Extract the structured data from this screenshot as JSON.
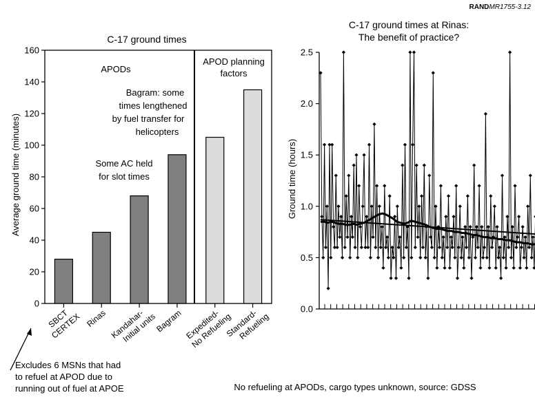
{
  "source_tag": {
    "org": "RAND",
    "id": "MR1755-3.12"
  },
  "footnote_left": [
    "Excludes 6 MSNs that had",
    "to refuel at APOD due to",
    "running out of fuel at APOE"
  ],
  "footnote_right": "No refueling at APODs, cargo types unknown, source: GDSS",
  "chart_data": [
    {
      "type": "bar",
      "title": "C-17 ground times",
      "ylabel": "Average ground time (minutes)",
      "xlabel": "",
      "ylim": [
        0,
        160
      ],
      "yticks": [
        "0",
        "20",
        "40",
        "60",
        "80",
        "100",
        "120",
        "140",
        "160"
      ],
      "grid": false,
      "categories": [
        [
          "SBCT",
          "CERTEX"
        ],
        [
          "Rinas"
        ],
        [
          "Kandahar-",
          "Initial units"
        ],
        [
          "Bagram"
        ],
        [
          "Expedited-",
          "No Refueling"
        ],
        [
          "Standard-",
          "Refueling"
        ]
      ],
      "values": [
        28,
        45,
        68,
        94,
        105,
        135
      ],
      "bar_colors": [
        "#808080",
        "#808080",
        "#808080",
        "#808080",
        "#dcdcdc",
        "#dcdcdc"
      ],
      "section_labels": [
        {
          "lines": [
            "APODs"
          ]
        },
        {
          "lines": [
            "APOD planning",
            "factors"
          ]
        }
      ],
      "annotations": [
        {
          "lines": [
            "Bagram: some",
            "times lengthened",
            "by fuel transfer for",
            "helicopters"
          ]
        },
        {
          "lines": [
            "Some AC held",
            "for slot times"
          ]
        }
      ]
    },
    {
      "type": "line",
      "title": [
        "C-17 ground times at Rinas:",
        "The benefit of practice?"
      ],
      "ylabel": "Ground time (hours)",
      "xlabel": "",
      "ylim": [
        0,
        2.5
      ],
      "yticks": [
        "0.0",
        "0.5",
        "1.0",
        "1.5",
        "2.0",
        "2.5"
      ],
      "grid": false,
      "series": [
        {
          "values": [
            2.3,
            0.9,
            0.5,
            1.6,
            0.6,
            1.0,
            0.2,
            1.6,
            0.5,
            1.6,
            0.8,
            0.6,
            1.3,
            0.6,
            1.0,
            0.7,
            0.9,
            0.5,
            2.5,
            0.6,
            1.1,
            0.7,
            1.3,
            0.5,
            0.9,
            0.7,
            1.4,
            0.6,
            1.5,
            0.5,
            1.2,
            0.8,
            0.6,
            1.0,
            1.5,
            0.6,
            0.9,
            0.6,
            1.6,
            0.5,
            1.0,
            0.7,
            1.8,
            0.6,
            1.2,
            0.5,
            1.0,
            0.6,
            0.8,
            0.4,
            1.2,
            0.6,
            0.7,
            0.5,
            1.1,
            0.3,
            0.6,
            0.5,
            0.9,
            0.3,
            1.0,
            0.6,
            0.7,
            0.4,
            1.4,
            0.5,
            1.6,
            0.6,
            0.8,
            0.3,
            2.5,
            0.5,
            1.6,
            2.5,
            0.6,
            1.4,
            0.7,
            1.0,
            0.5,
            1.1,
            0.6,
            1.4,
            0.5,
            0.8,
            0.3,
            1.3,
            0.7,
            0.6,
            2.3,
            0.5,
            1.0,
            0.4,
            0.8,
            0.6,
            1.2,
            0.5,
            0.7,
            0.4,
            0.9,
            0.6,
            1.1,
            0.4,
            0.7,
            0.6,
            0.9,
            0.5,
            1.2,
            0.3,
            0.6,
            1.0,
            0.5,
            0.7,
            0.4,
            0.8,
            0.6,
            1.1,
            0.5,
            0.8,
            0.3,
            0.7,
            1.4,
            0.5,
            0.8,
            0.6,
            1.2,
            0.4,
            0.8,
            0.5,
            0.6,
            1.9,
            0.5,
            0.8,
            0.4,
            1.1,
            0.6,
            0.7,
            1.0,
            0.4,
            0.8,
            0.5,
            0.6,
            0.3,
            1.3,
            0.5,
            0.7,
            0.4,
            0.9,
            0.6,
            2.5,
            0.5,
            0.8,
            0.4,
            1.2,
            0.6,
            0.7,
            0.9,
            0.4,
            0.6,
            0.8,
            0.5,
            0.7,
            0.4,
            1.0,
            0.6,
            1.3,
            0.5,
            0.7,
            0.4,
            0.9,
            0.6,
            0.5,
            1.4,
            0.5,
            0.6
          ]
        },
        {
          "values": [
            0.85,
            0.85,
            0.84,
            0.85,
            0.84,
            0.83,
            0.83,
            0.82,
            0.82,
            0.83,
            0.82,
            0.83,
            0.84,
            0.86,
            0.88,
            0.9,
            0.92,
            0.93,
            0.92,
            0.9,
            0.88,
            0.85,
            0.84,
            0.83,
            0.84,
            0.86,
            0.85,
            0.84,
            0.83,
            0.82,
            0.8,
            0.79,
            0.78,
            0.78,
            0.77,
            0.76,
            0.76,
            0.75,
            0.75,
            0.74,
            0.74,
            0.73,
            0.72,
            0.72,
            0.71,
            0.7,
            0.7,
            0.69,
            0.69,
            0.68,
            0.68,
            0.67,
            0.67,
            0.66,
            0.65,
            0.65,
            0.64,
            0.64,
            0.63,
            0.63,
            0.62,
            0.62
          ]
        },
        {
          "values": [
            0.87,
            0.73
          ]
        }
      ]
    }
  ]
}
